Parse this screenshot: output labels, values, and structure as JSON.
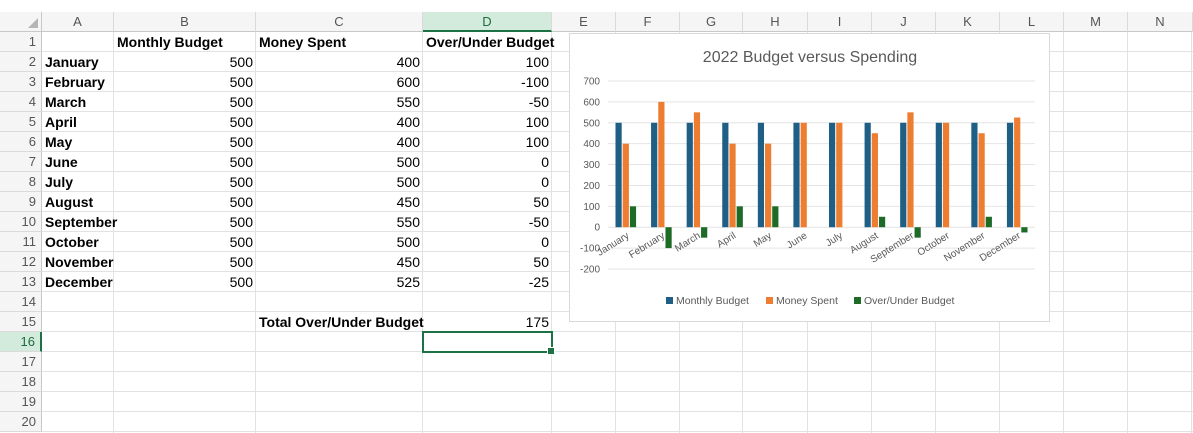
{
  "columns": [
    "A",
    "B",
    "C",
    "D",
    "E",
    "F",
    "G",
    "H",
    "I",
    "J",
    "K",
    "L",
    "M",
    "N"
  ],
  "selected_column": "D",
  "rows": [
    "1",
    "2",
    "3",
    "4",
    "5",
    "6",
    "7",
    "8",
    "9",
    "10",
    "11",
    "12",
    "13",
    "14",
    "15",
    "16",
    "17",
    "18",
    "19",
    "20"
  ],
  "selected_row": "16",
  "headers": {
    "monthly_budget": "Monthly Budget",
    "money_spent": "Money Spent",
    "over_under": "Over/Under Budget"
  },
  "table": [
    {
      "month": "January",
      "budget": "500",
      "spent": "400",
      "diff": "100"
    },
    {
      "month": "February",
      "budget": "500",
      "spent": "600",
      "diff": "-100"
    },
    {
      "month": "March",
      "budget": "500",
      "spent": "550",
      "diff": "-50"
    },
    {
      "month": "April",
      "budget": "500",
      "spent": "400",
      "diff": "100"
    },
    {
      "month": "May",
      "budget": "500",
      "spent": "400",
      "diff": "100"
    },
    {
      "month": "June",
      "budget": "500",
      "spent": "500",
      "diff": "0"
    },
    {
      "month": "July",
      "budget": "500",
      "spent": "500",
      "diff": "0"
    },
    {
      "month": "August",
      "budget": "500",
      "spent": "450",
      "diff": "50"
    },
    {
      "month": "September",
      "budget": "500",
      "spent": "550",
      "diff": "-50"
    },
    {
      "month": "October",
      "budget": "500",
      "spent": "500",
      "diff": "0"
    },
    {
      "month": "November",
      "budget": "500",
      "spent": "450",
      "diff": "50"
    },
    {
      "month": "December",
      "budget": "500",
      "spent": "525",
      "diff": "-25"
    }
  ],
  "total": {
    "label": "Total Over/Under Budget",
    "value": "175"
  },
  "colors": {
    "budget": "#1f5f86",
    "spent": "#ed7d31",
    "diff": "#1e6b28",
    "selection": "#1e7145"
  },
  "chart_data": {
    "type": "bar",
    "title": "2022 Budget versus Spending",
    "categories": [
      "January",
      "February",
      "March",
      "April",
      "May",
      "June",
      "July",
      "August",
      "September",
      "October",
      "November",
      "December"
    ],
    "series": [
      {
        "name": "Monthly Budget",
        "values": [
          500,
          500,
          500,
          500,
          500,
          500,
          500,
          500,
          500,
          500,
          500,
          500
        ]
      },
      {
        "name": "Money Spent",
        "values": [
          400,
          600,
          550,
          400,
          400,
          500,
          500,
          450,
          550,
          500,
          450,
          525
        ]
      },
      {
        "name": "Over/Under Budget",
        "values": [
          100,
          -100,
          -50,
          100,
          100,
          0,
          0,
          50,
          -50,
          0,
          50,
          -25
        ]
      }
    ],
    "yticks": [
      "700",
      "600",
      "500",
      "400",
      "300",
      "200",
      "100",
      "0",
      "-100",
      "-200"
    ],
    "ylim": [
      -200,
      700
    ],
    "legend": "bottom",
    "grid": true
  }
}
